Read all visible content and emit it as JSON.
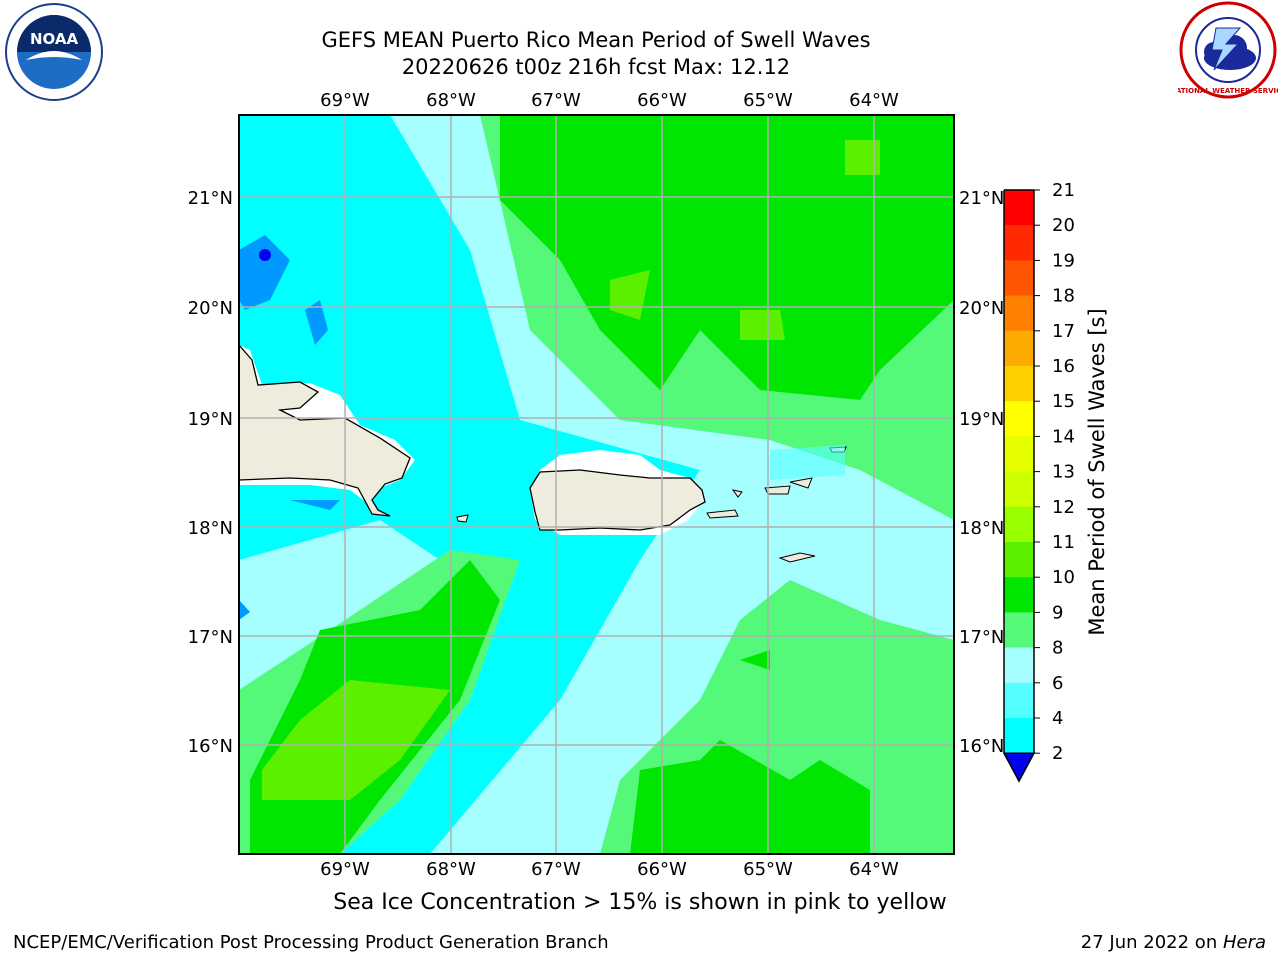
{
  "header": {
    "title_line1": "GEFS MEAN Puerto Rico Mean Period of Swell Waves",
    "title_line2": "20220626 t00z 216h fcst   Max: 12.12"
  },
  "logos": {
    "left": {
      "name": "noaa-logo",
      "text": "NOAA"
    },
    "right": {
      "name": "nws-logo",
      "text": "NATIONAL WEATHER SERVICE"
    }
  },
  "map": {
    "longitude_labels": [
      "69°W",
      "68°W",
      "67°W",
      "66°W",
      "65°W",
      "64°W"
    ],
    "latitude_labels": [
      "21°N",
      "20°N",
      "19°N",
      "18°N",
      "17°N",
      "16°N"
    ],
    "land_color": "#eeecdc",
    "grid_color": "#b0b0b0"
  },
  "colorbar": {
    "label": "Mean Period of Swell Waves [s]",
    "ticks": [
      "21",
      "20",
      "19",
      "18",
      "17",
      "16",
      "15",
      "14",
      "13",
      "12",
      "11",
      "10",
      "9",
      "8",
      "6",
      "4",
      "2"
    ],
    "colors": [
      "#ff0000",
      "#ff2a00",
      "#ff5500",
      "#ff8000",
      "#ffaa00",
      "#ffd000",
      "#ffff00",
      "#e6ff00",
      "#ccff00",
      "#99ff00",
      "#5bf000",
      "#00e600",
      "#55f97a",
      "#a6ffff",
      "#55ffff",
      "#00ffff",
      "#0099ff"
    ],
    "extend_color": "#0000ee"
  },
  "caption": "Sea Ice Concentration > 15% is shown in pink to yellow",
  "footer": {
    "left": "NCEP/EMC/Verification Post Processing Product Generation Branch",
    "right_prefix": "27 Jun 2022 on ",
    "right_machine": "Hera"
  }
}
